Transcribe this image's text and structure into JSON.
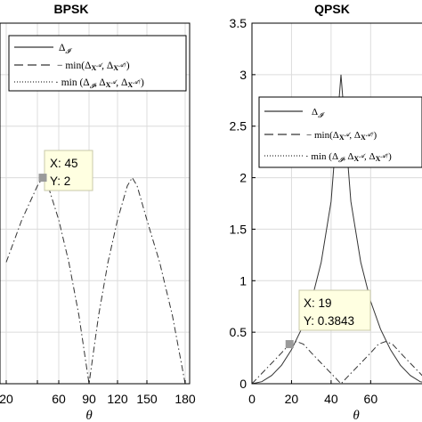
{
  "chart_data": [
    {
      "type": "line",
      "title": "BPSK",
      "xlabel": "θ",
      "ylabel": "",
      "xlim": [
        20,
        180
      ],
      "ylim": [
        0,
        3.5
      ],
      "xticks": [
        20,
        40,
        60,
        90,
        120,
        150,
        180
      ],
      "xtick_labels": [
        "20",
        "",
        "60",
        "90",
        "120",
        "150",
        "180"
      ],
      "grid": true,
      "legend_position": "top",
      "legend": [
        "Δ_I",
        "min(Δ_X^A, Δ_X^A†)",
        "min(Δ_I, Δ_X^A, Δ_X^A†)"
      ],
      "series": [
        {
          "name": "min(Δ_X^A, Δ_X^A†)",
          "style": "dashdot",
          "x": [
            20,
            30,
            40,
            45,
            50,
            60,
            70,
            80,
            90,
            100,
            110,
            120,
            130,
            135,
            140,
            150,
            160,
            170,
            180
          ],
          "y": [
            1.18,
            1.59,
            1.92,
            2.0,
            1.92,
            1.59,
            1.18,
            0.66,
            0.0,
            0.66,
            1.18,
            1.59,
            1.92,
            2.0,
            1.92,
            1.59,
            1.18,
            0.66,
            0.0
          ]
        }
      ],
      "datatip": {
        "x_label": "X: 45",
        "y_label": "Y: 2",
        "x": 45,
        "y": 2
      }
    },
    {
      "type": "line",
      "title": "QPSK",
      "xlabel": "θ",
      "ylabel": "",
      "xlim": [
        0,
        90
      ],
      "ylim": [
        0,
        3.5
      ],
      "xticks": [
        0,
        20,
        40,
        60
      ],
      "yticks": [
        0,
        0.5,
        1,
        1.5,
        2,
        2.5,
        3,
        3.5
      ],
      "ytick_labels": [
        "0",
        "0.5",
        "1",
        "1.5",
        "2",
        "2.5",
        "3",
        "3.5"
      ],
      "grid": true,
      "legend_position": "top",
      "legend": [
        "Δ_I",
        "min(Δ_X^A, Δ_X^A†)",
        "min(Δ_I, Δ_X^A, Δ_X^A†)"
      ],
      "series": [
        {
          "name": "Δ_I",
          "style": "solid",
          "x": [
            0,
            5,
            10,
            15,
            20,
            25,
            30,
            35,
            40,
            45,
            50,
            55,
            60,
            65,
            70,
            75,
            80,
            85,
            90
          ],
          "y": [
            0.0,
            0.02,
            0.08,
            0.18,
            0.33,
            0.53,
            0.8,
            1.18,
            1.77,
            3.0,
            1.77,
            1.18,
            0.8,
            0.53,
            0.33,
            0.18,
            0.08,
            0.02,
            0.0
          ]
        },
        {
          "name": "min(Δ_X^A, Δ_X^A†)",
          "style": "dashdot",
          "x": [
            0,
            5,
            10,
            15,
            19,
            22.5,
            26,
            30,
            35,
            40,
            45,
            50,
            55,
            60,
            64,
            67.5,
            71,
            75,
            80,
            85,
            90
          ],
          "y": [
            0.0,
            0.1,
            0.2,
            0.3,
            0.3843,
            0.41,
            0.3843,
            0.3,
            0.2,
            0.1,
            0.0,
            0.1,
            0.2,
            0.3,
            0.3843,
            0.41,
            0.3843,
            0.3,
            0.2,
            0.1,
            0.0
          ]
        }
      ],
      "datatip": {
        "x_label": "X: 19",
        "y_label": "Y: 0.3843",
        "x": 19,
        "y": 0.3843
      }
    }
  ]
}
